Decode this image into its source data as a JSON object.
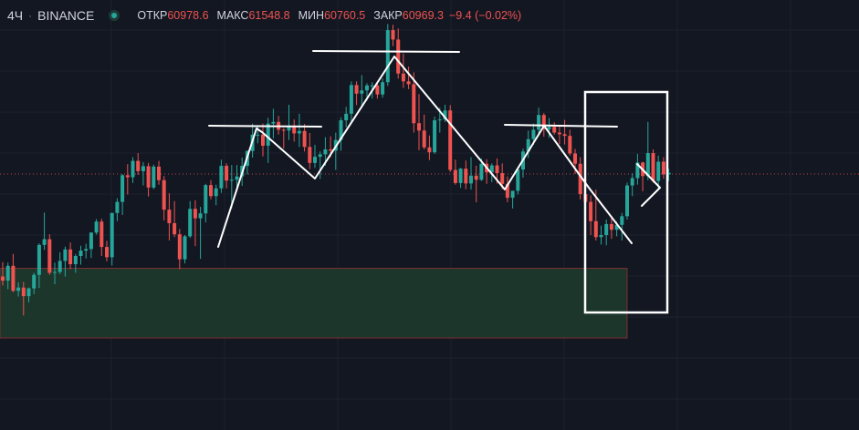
{
  "legend": {
    "interval": "4Ч",
    "exchange": "BINANCE",
    "open_label": "ОТКР",
    "open_value": "60978.6",
    "high_label": "МАКС",
    "high_value": "61548.8",
    "low_label": "МИН",
    "low_value": "60760.5",
    "close_label": "ЗАКР",
    "close_value": "60969.3",
    "change": "−9.4 (−0.02%)"
  },
  "colors": {
    "background": "#131722",
    "grid": "#1e222d",
    "up": "#26a69a",
    "down": "#ef5350",
    "drawing": "#ffffff",
    "zone_fill": "#1e3a2e",
    "zone_border": "#7a2e2e",
    "price_line": "#ef5350"
  },
  "chart_data": {
    "type": "candlestick",
    "x_unit": "bar index",
    "y_unit": "price (arbitrary scale)",
    "ylim": [
      0,
      100
    ],
    "xlim": [
      0,
      140
    ],
    "grid": true,
    "current_price": 60,
    "candles": [
      [
        35.0,
        38.5,
        32.8,
        34.0
      ],
      [
        34.0,
        38.4,
        31.9,
        37.6
      ],
      [
        37.6,
        40.5,
        31.2,
        31.5
      ],
      [
        31.5,
        33.6,
        30.1,
        32.3
      ],
      [
        32.3,
        33.7,
        25.5,
        30.2
      ],
      [
        30.2,
        32.3,
        28.7,
        32.1
      ],
      [
        32.1,
        35.9,
        30.7,
        35.4
      ],
      [
        35.4,
        43.1,
        32.2,
        42.7
      ],
      [
        42.7,
        50.6,
        41.5,
        44.1
      ],
      [
        44.1,
        45.3,
        35.4,
        35.9
      ],
      [
        35.9,
        38.4,
        33.1,
        36.1
      ],
      [
        36.1,
        40.9,
        35.6,
        38.8
      ],
      [
        38.8,
        42.3,
        35.0,
        41.6
      ],
      [
        41.6,
        43.3,
        36.8,
        38.0
      ],
      [
        38.0,
        40.5,
        35.9,
        40.0
      ],
      [
        40.0,
        42.5,
        37.9,
        41.3
      ],
      [
        41.3,
        43.0,
        39.4,
        41.7
      ],
      [
        41.7,
        45.8,
        39.5,
        45.7
      ],
      [
        45.7,
        49.0,
        45.2,
        48.4
      ],
      [
        48.4,
        49.1,
        40.0,
        42.2
      ],
      [
        42.2,
        43.7,
        38.7,
        39.7
      ],
      [
        39.7,
        50.5,
        37.7,
        50.5
      ],
      [
        50.5,
        54.1,
        48.5,
        53.2
      ],
      [
        53.2,
        60.0,
        50.0,
        59.7
      ],
      [
        59.7,
        62.4,
        55.0,
        59.2
      ],
      [
        59.2,
        64.1,
        57.8,
        63.2
      ],
      [
        63.2,
        65.1,
        59.8,
        60.7
      ],
      [
        60.7,
        62.9,
        57.2,
        61.9
      ],
      [
        61.9,
        62.7,
        54.5,
        56.7
      ],
      [
        56.7,
        62.3,
        56.3,
        61.8
      ],
      [
        61.8,
        63.2,
        57.4,
        58.5
      ],
      [
        58.5,
        59.5,
        48.7,
        51.3
      ],
      [
        51.3,
        55.3,
        43.8,
        48.0
      ],
      [
        48.0,
        53.4,
        44.6,
        45.3
      ],
      [
        45.3,
        46.6,
        36.8,
        39.2
      ],
      [
        39.2,
        45.1,
        38.2,
        44.8
      ],
      [
        44.8,
        53.4,
        44.4,
        51.5
      ],
      [
        51.5,
        53.6,
        42.4,
        49.2
      ],
      [
        49.2,
        52.0,
        39.3,
        50.4
      ],
      [
        50.4,
        57.6,
        48.2,
        57.3
      ],
      [
        57.3,
        58.5,
        53.8,
        54.6
      ],
      [
        54.6,
        57.4,
        52.4,
        56.5
      ],
      [
        56.5,
        63.5,
        55.4,
        62.0
      ],
      [
        62.0,
        62.6,
        56.5,
        58.4
      ],
      [
        58.4,
        62.2,
        51.6,
        58.6
      ],
      [
        58.6,
        62.2,
        56.8,
        59.4
      ],
      [
        59.4,
        64.0,
        57.1,
        62.0
      ],
      [
        62.0,
        65.8,
        59.9,
        65.6
      ],
      [
        65.6,
        72.3,
        64.0,
        69.6
      ],
      [
        69.6,
        71.8,
        67.5,
        69.6
      ],
      [
        69.6,
        72.3,
        64.3,
        66.9
      ],
      [
        66.9,
        73.7,
        62.7,
        72.3
      ],
      [
        72.3,
        75.9,
        68.7,
        72.7
      ],
      [
        72.7,
        74.2,
        69.6,
        70.8
      ],
      [
        70.8,
        71.2,
        66.2,
        70.6
      ],
      [
        70.6,
        76.9,
        68.3,
        71.8
      ],
      [
        71.8,
        73.3,
        67.9,
        69.9
      ],
      [
        69.9,
        74.7,
        66.6,
        70.5
      ],
      [
        70.5,
        72.2,
        65.5,
        66.6
      ],
      [
        66.6,
        70.0,
        61.2,
        62.7
      ],
      [
        62.7,
        67.1,
        61.5,
        64.2
      ],
      [
        64.2,
        65.5,
        58.8,
        64.8
      ],
      [
        64.8,
        69.0,
        62.0,
        66.0
      ],
      [
        66.0,
        69.2,
        64.1,
        65.7
      ],
      [
        65.7,
        70.1,
        61.0,
        68.3
      ],
      [
        68.3,
        73.8,
        65.7,
        73.1
      ],
      [
        73.1,
        76.4,
        71.4,
        74.7
      ],
      [
        74.7,
        82.6,
        72.6,
        81.7
      ],
      [
        81.7,
        82.6,
        76.8,
        79.6
      ],
      [
        79.6,
        84.1,
        76.8,
        80.4
      ],
      [
        80.4,
        82.1,
        77.9,
        81.6
      ],
      [
        81.6,
        82.4,
        78.4,
        81.6
      ],
      [
        81.6,
        82.6,
        78.4,
        79.4
      ],
      [
        79.4,
        83.3,
        78.6,
        82.4
      ],
      [
        82.4,
        96.6,
        81.5,
        95.1
      ],
      [
        95.1,
        96.4,
        91.2,
        92.8
      ],
      [
        92.8,
        95.5,
        83.3,
        84.5
      ],
      [
        84.5,
        89.4,
        81.0,
        82.6
      ],
      [
        82.6,
        86.2,
        80.7,
        81.9
      ],
      [
        81.9,
        84.8,
        70.1,
        72.4
      ],
      [
        72.4,
        79.5,
        65.8,
        70.6
      ],
      [
        70.6,
        74.5,
        66.0,
        66.5
      ],
      [
        66.5,
        69.4,
        63.4,
        65.3
      ],
      [
        65.3,
        74.0,
        64.9,
        73.1
      ],
      [
        73.1,
        76.2,
        70.1,
        73.3
      ],
      [
        73.3,
        76.9,
        72.7,
        75.5
      ],
      [
        75.5,
        76.8,
        60.5,
        61.0
      ],
      [
        61.0,
        63.5,
        57.4,
        57.8
      ],
      [
        57.8,
        61.5,
        56.6,
        61.3
      ],
      [
        61.3,
        63.3,
        56.3,
        57.7
      ],
      [
        57.7,
        64.1,
        56.2,
        59.6
      ],
      [
        59.6,
        62.0,
        53.1,
        58.6
      ],
      [
        58.6,
        63.8,
        58.3,
        62.5
      ],
      [
        62.5,
        63.6,
        57.6,
        60.4
      ],
      [
        60.4,
        62.6,
        58.0,
        62.1
      ],
      [
        62.1,
        63.8,
        57.7,
        60.2
      ],
      [
        60.2,
        62.6,
        56.3,
        57.6
      ],
      [
        57.6,
        59.4,
        53.1,
        54.2
      ],
      [
        54.2,
        55.9,
        51.6,
        55.9
      ],
      [
        55.9,
        61.7,
        55.0,
        61.1
      ],
      [
        61.1,
        66.2,
        59.1,
        65.5
      ],
      [
        65.5,
        70.6,
        63.9,
        68.5
      ],
      [
        68.5,
        72.3,
        67.1,
        70.8
      ],
      [
        70.8,
        76.2,
        69.6,
        74.4
      ],
      [
        74.4,
        74.9,
        69.1,
        70.9
      ],
      [
        70.9,
        73.6,
        68.8,
        71.5
      ],
      [
        71.5,
        72.6,
        69.6,
        70.1
      ],
      [
        70.1,
        71.7,
        67.3,
        69.7
      ],
      [
        69.7,
        73.2,
        67.2,
        69.3
      ],
      [
        69.3,
        70.8,
        64.5,
        65.0
      ],
      [
        65.0,
        66.1,
        60.0,
        62.5
      ],
      [
        62.5,
        64.1,
        53.8,
        55.1
      ],
      [
        55.1,
        57.5,
        52.2,
        53.2
      ],
      [
        53.2,
        54.8,
        45.1,
        48.5
      ],
      [
        48.5,
        56.2,
        43.8,
        44.6
      ],
      [
        44.6,
        47.4,
        42.8,
        45.1
      ],
      [
        45.1,
        48.9,
        42.6,
        47.8
      ],
      [
        47.8,
        49.2,
        44.2,
        46.4
      ],
      [
        46.4,
        48.4,
        44.8,
        47.6
      ],
      [
        47.6,
        50.5,
        43.8,
        49.7
      ],
      [
        49.7,
        57.9,
        48.9,
        57.2
      ],
      [
        57.2,
        60.2,
        54.6,
        59.0
      ],
      [
        59.0,
        64.9,
        57.4,
        62.8
      ],
      [
        62.8,
        63.0,
        55.8,
        59.5
      ],
      [
        59.5,
        72.7,
        58.5,
        65.1
      ],
      [
        65.1,
        66.0,
        57.9,
        58.3
      ],
      [
        58.3,
        64.5,
        56.5,
        63.0
      ],
      [
        63.0,
        64.1,
        58.8,
        59.9
      ],
      [
        59.9,
        61.3,
        58.3,
        60.3
      ]
    ],
    "support_zone": {
      "x_start": 0,
      "x_end": 120,
      "y_low": 20,
      "y_high": 37
    }
  }
}
